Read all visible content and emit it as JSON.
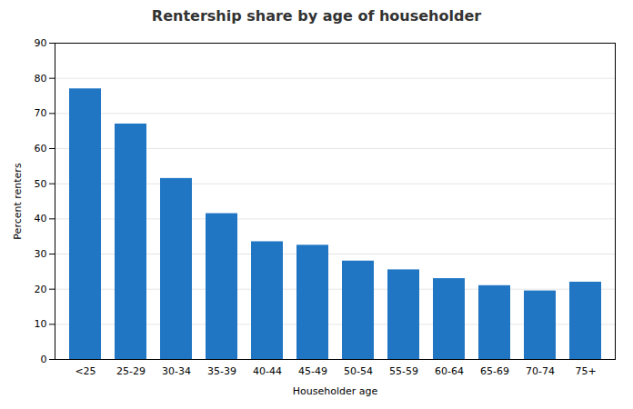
{
  "chart_data": {
    "type": "bar",
    "title": "Rentership share by age of householder",
    "categories": [
      "<25",
      "25-29",
      "30-34",
      "35-39",
      "40-44",
      "45-49",
      "50-54",
      "55-59",
      "60-64",
      "65-69",
      "70-74",
      "75+"
    ],
    "values": [
      77.0,
      67.0,
      51.5,
      41.5,
      33.5,
      32.5,
      28.0,
      25.5,
      23.0,
      21.0,
      19.5,
      22.0
    ],
    "color": "#2176c4",
    "xlabel": "Householder age",
    "ylabel": "Percent renters",
    "ylim": [
      0,
      90
    ],
    "yticks": [
      0,
      10,
      20,
      30,
      40,
      50,
      60,
      70,
      80,
      90
    ],
    "grid": true
  }
}
